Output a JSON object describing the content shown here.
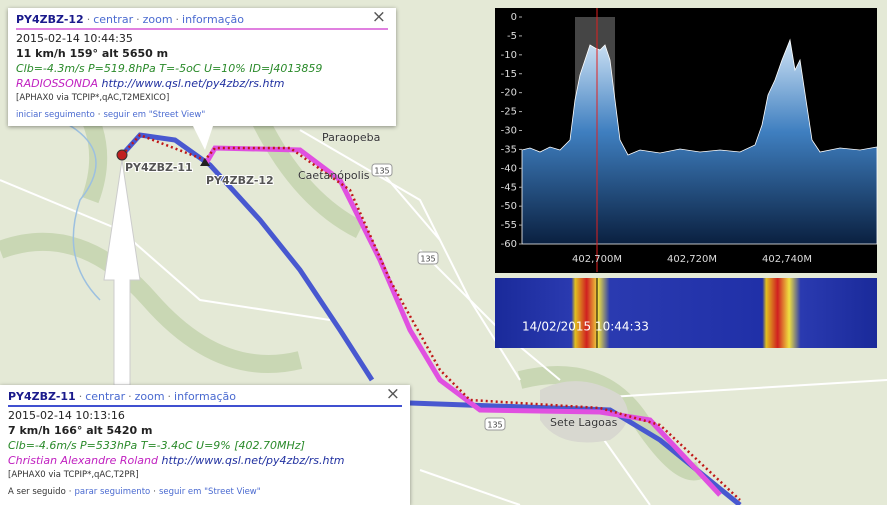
{
  "map": {
    "places": [
      "Paraopeba",
      "Caetanópolis",
      "Sete Lagoas"
    ],
    "roads": [
      "135",
      "135",
      "135"
    ],
    "markers": [
      "PY4ZBZ-11",
      "PY4ZBZ-12"
    ]
  },
  "sep": "·",
  "close": "×",
  "popup_top": {
    "callsign": "PY4ZBZ-12",
    "links": [
      "centrar",
      "zoom",
      "informação"
    ],
    "time": "2015-02-14 10:44:35",
    "speed": "11 km/h 159° alt 5650 m",
    "telemetry": "Clb=-4.3m/s P=519.8hPa T=-5oC U=10% ID=J4013859",
    "comment": "RADIOSSONDA",
    "url": "http://www.qsl.net/py4zbz/rs.htm",
    "path": "[APHAX0 via TCPIP*,qAC,T2MEXICO]",
    "actions": [
      "iniciar seguimento",
      "seguir em \"Street View\""
    ]
  },
  "popup_bottom": {
    "callsign": "PY4ZBZ-11",
    "links": [
      "centrar",
      "zoom",
      "informação"
    ],
    "time": "2015-02-14 10:13:16",
    "speed": "7 km/h 166° alt 5420 m",
    "telemetry": "Clb=-4.6m/s P=533hPa T=-3.4oC U=9% [402.70MHz]",
    "comment": "Christian Alexandre Roland",
    "url": "http://www.qsl.net/py4zbz/rs.htm",
    "path": "[APHAX0 via TCPIP*,qAC,T2PR]",
    "actions": [
      "A ser seguido",
      "parar seguimento",
      "seguir em \"Street View\""
    ]
  },
  "spectrum": {
    "yticks": [
      0,
      -5,
      -10,
      -15,
      -20,
      -25,
      -30,
      -35,
      -40,
      -45,
      -50,
      -55,
      -60
    ],
    "xticks": [
      "402,700M",
      "402,720M",
      "402,740M"
    ],
    "timestamp": "14/02/2015 10:44:33"
  }
}
